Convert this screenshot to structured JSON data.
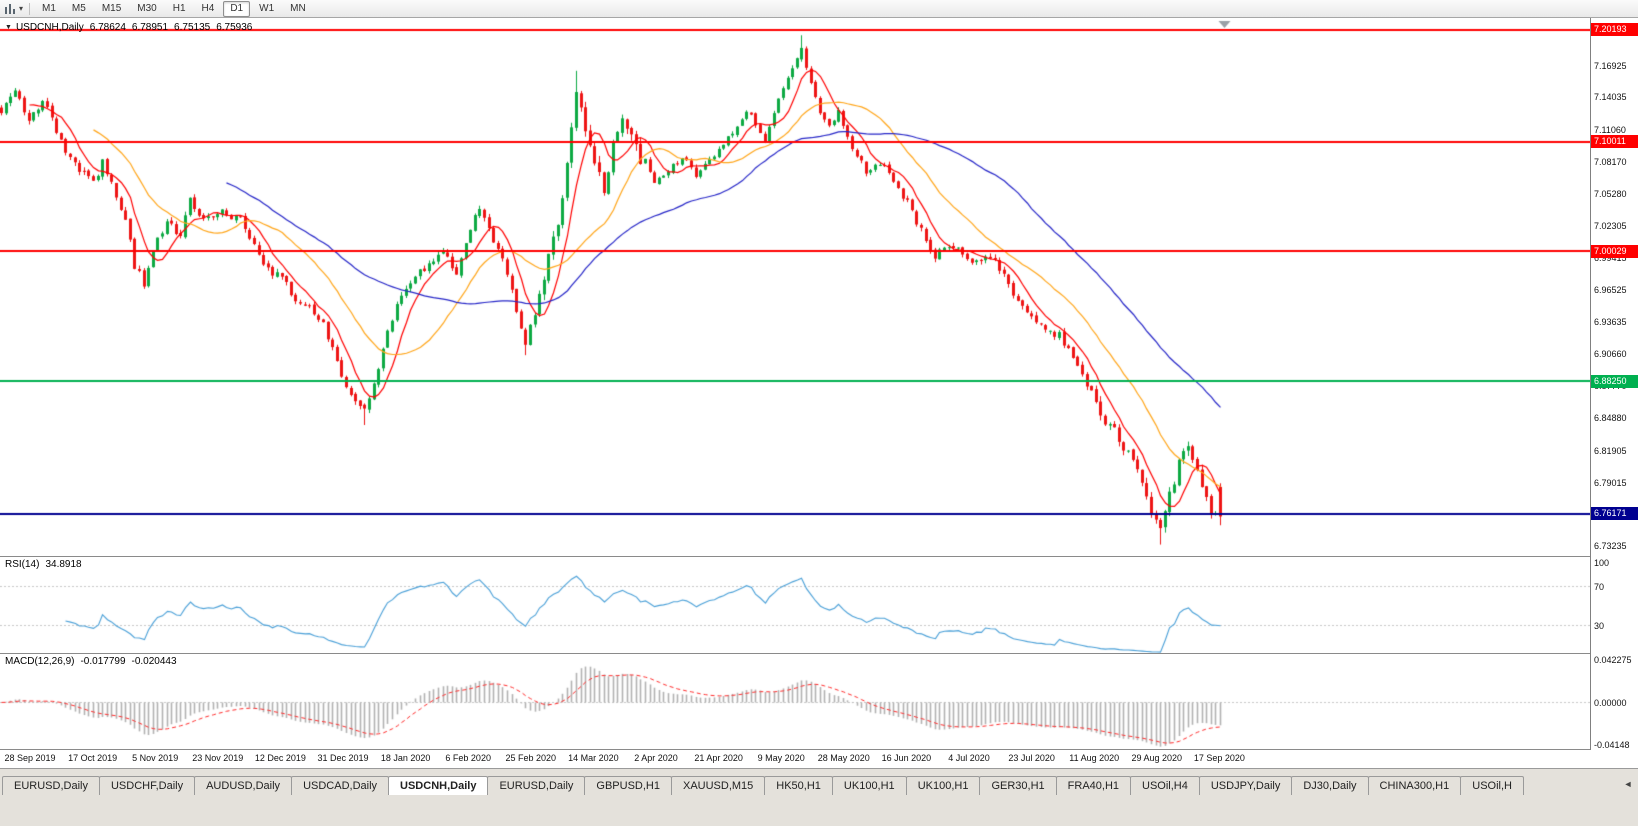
{
  "toolbar": {
    "timeframes": [
      "M1",
      "M5",
      "M15",
      "M30",
      "H1",
      "H4",
      "D1",
      "W1",
      "MN"
    ],
    "active_timeframe": "D1"
  },
  "chart_title": {
    "symbol": "USDCNH,Daily",
    "open": "6.78624",
    "high": "6.78951",
    "low": "6.75135",
    "close": "6.75936"
  },
  "indicators": {
    "rsi_label": "RSI(14)",
    "rsi_value": "34.8918",
    "macd_label": "MACD(12,26,9)",
    "macd_value": "-0.017799",
    "macd_signal_value": "-0.020443"
  },
  "chart_data": {
    "type": "candlestick",
    "title": "USDCNH,Daily",
    "colors": {
      "up": "#0daa43",
      "down": "#ee1515",
      "rsi": "#4aa0d8",
      "macd_hist": "#b2b2b2",
      "macd_signal": "#ff2a2a"
    },
    "main": {
      "ylim": [
        6.7225,
        7.2125
      ],
      "yticks": [
        "7.16925",
        "7.14035",
        "7.11060",
        "7.08170",
        "7.05280",
        "7.02305",
        "6.99415",
        "6.96525",
        "6.93635",
        "6.90660",
        "6.87770",
        "6.84880",
        "6.81905",
        "6.79015",
        "6.76125",
        "6.73235"
      ],
      "hlines": [
        {
          "price": 7.20193,
          "label": "7.20193",
          "color": "#ff0000",
          "width": 2
        },
        {
          "price": 7.10011,
          "label": "7.10011",
          "color": "#ff0000",
          "width": 2
        },
        {
          "price": 7.00029,
          "label": "7.00029",
          "color": "#ff0000",
          "width": 2
        },
        {
          "price": 6.8825,
          "label": "6.88250",
          "color": "#00b050",
          "width": 2
        },
        {
          "price": 6.76171,
          "label": "6.76171",
          "color": "#000090",
          "width": 2
        }
      ],
      "ma": [
        {
          "period": 7,
          "color": "#ff0000"
        },
        {
          "period": 21,
          "color": "#ffa61a"
        },
        {
          "period": 50,
          "color": "#2626c8"
        }
      ],
      "num_bars": 266,
      "anchors": [
        [
          0,
          7.125
        ],
        [
          3,
          7.149
        ],
        [
          6,
          7.118
        ],
        [
          9,
          7.136
        ],
        [
          12,
          7.112
        ],
        [
          14,
          7.092
        ],
        [
          17,
          7.075
        ],
        [
          20,
          7.062
        ],
        [
          22,
          7.082
        ],
        [
          25,
          7.052
        ],
        [
          27,
          7.03
        ],
        [
          29,
          6.988
        ],
        [
          31,
          6.972
        ],
        [
          33,
          7.004
        ],
        [
          36,
          7.026
        ],
        [
          39,
          7.014
        ],
        [
          41,
          7.048
        ],
        [
          44,
          7.028
        ],
        [
          48,
          7.036
        ],
        [
          52,
          7.028
        ],
        [
          55,
          7.004
        ],
        [
          58,
          6.986
        ],
        [
          61,
          6.974
        ],
        [
          64,
          6.958
        ],
        [
          67,
          6.948
        ],
        [
          70,
          6.936
        ],
        [
          73,
          6.9
        ],
        [
          76,
          6.868
        ],
        [
          79,
          6.858
        ],
        [
          81,
          6.882
        ],
        [
          84,
          6.926
        ],
        [
          87,
          6.962
        ],
        [
          90,
          6.976
        ],
        [
          93,
          6.99
        ],
        [
          96,
          7.0
        ],
        [
          99,
          6.982
        ],
        [
          102,
          7.022
        ],
        [
          104,
          7.042
        ],
        [
          107,
          7.008
        ],
        [
          110,
          6.982
        ],
        [
          112,
          6.948
        ],
        [
          114,
          6.918
        ],
        [
          116,
          6.946
        ],
        [
          118,
          6.98
        ],
        [
          121,
          7.022
        ],
        [
          123,
          7.078
        ],
        [
          125,
          7.145
        ],
        [
          127,
          7.108
        ],
        [
          129,
          7.082
        ],
        [
          131,
          7.06
        ],
        [
          133,
          7.096
        ],
        [
          135,
          7.116
        ],
        [
          137,
          7.1
        ],
        [
          139,
          7.086
        ],
        [
          142,
          7.064
        ],
        [
          145,
          7.076
        ],
        [
          148,
          7.086
        ],
        [
          151,
          7.068
        ],
        [
          153,
          7.08
        ],
        [
          156,
          7.094
        ],
        [
          159,
          7.11
        ],
        [
          162,
          7.13
        ],
        [
          164,
          7.114
        ],
        [
          166,
          7.1
        ],
        [
          168,
          7.126
        ],
        [
          170,
          7.146
        ],
        [
          172,
          7.166
        ],
        [
          174,
          7.186
        ],
        [
          176,
          7.152
        ],
        [
          178,
          7.128
        ],
        [
          180,
          7.114
        ],
        [
          182,
          7.126
        ],
        [
          184,
          7.104
        ],
        [
          186,
          7.086
        ],
        [
          188,
          7.074
        ],
        [
          191,
          7.082
        ],
        [
          194,
          7.064
        ],
        [
          197,
          7.044
        ],
        [
          200,
          7.018
        ],
        [
          203,
          6.996
        ],
        [
          206,
          7.006
        ],
        [
          209,
          7.0
        ],
        [
          212,
          6.99
        ],
        [
          215,
          6.996
        ],
        [
          218,
          6.976
        ],
        [
          221,
          6.956
        ],
        [
          224,
          6.944
        ],
        [
          227,
          6.93
        ],
        [
          230,
          6.924
        ],
        [
          233,
          6.904
        ],
        [
          236,
          6.878
        ],
        [
          239,
          6.854
        ],
        [
          242,
          6.838
        ],
        [
          245,
          6.818
        ],
        [
          248,
          6.788
        ],
        [
          250,
          6.762
        ],
        [
          252,
          6.744
        ],
        [
          254,
          6.776
        ],
        [
          256,
          6.812
        ],
        [
          258,
          6.826
        ],
        [
          260,
          6.798
        ],
        [
          262,
          6.772
        ],
        [
          265,
          6.759
        ]
      ],
      "overrides": [
        {
          "i": 174,
          "high": 7.1968
        },
        {
          "i": 125,
          "high": 7.1645
        },
        {
          "i": 79,
          "low": 6.8425
        },
        {
          "i": 114,
          "low": 6.906
        },
        {
          "i": 252,
          "low": 6.7338
        }
      ],
      "last_bar": {
        "open": 6.78624,
        "high": 6.78951,
        "low": 6.75135,
        "close": 6.75936
      }
    },
    "rsi": {
      "period": 14,
      "ylim": [
        0,
        100
      ],
      "levels": [
        70,
        30
      ],
      "yticks": [
        "100",
        "70",
        "30"
      ],
      "last": 34.8918
    },
    "macd": {
      "fast": 12,
      "slow": 26,
      "signal": 9,
      "ylim": [
        -0.04148,
        0.042275
      ],
      "yticks": [
        "0.042275",
        "0.00000",
        "-0.04148"
      ]
    },
    "xlabels": [
      "28 Sep 2019",
      "17 Oct 2019",
      "5 Nov 2019",
      "23 Nov 2019",
      "12 Dec 2019",
      "31 Dec 2019",
      "18 Jan 2020",
      "6 Feb 2020",
      "25 Feb 2020",
      "14 Mar 2020",
      "2 Apr 2020",
      "21 Apr 2020",
      "9 May 2020",
      "28 May 2020",
      "16 Jun 2020",
      "4 Jul 2020",
      "23 Jul 2020",
      "11 Aug 2020",
      "29 Aug 2020",
      "17 Sep 2020"
    ]
  },
  "tabs": {
    "active_index": 4,
    "scroll_left": "◄",
    "items": [
      "EURUSD,Daily",
      "USDCHF,Daily",
      "AUDUSD,Daily",
      "USDCAD,Daily",
      "USDCNH,Daily",
      "EURUSD,Daily",
      "GBPUSD,H1",
      "XAUUSD,M15",
      "HK50,H1",
      "UK100,H1",
      "UK100,H1",
      "GER30,H1",
      "FRA40,H1",
      "USOil,H4",
      "USDJPY,Daily",
      "DJ30,Daily",
      "CHINA300,H1",
      "USOil,H"
    ]
  }
}
